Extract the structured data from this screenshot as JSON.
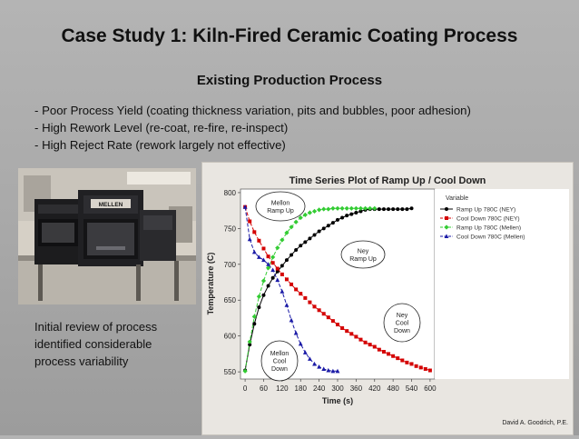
{
  "slide": {
    "title": "Case Study 1: Kiln-Fired Ceramic Coating Process",
    "subtitle": "Existing Production Process",
    "bullets": [
      "Poor Process Yield (coating thickness variation, pits and bubbles, poor adhesion)",
      "High Rework Level (re-coat, re-fire, re-inspect)",
      "High Reject Rate (rework largely not effective)"
    ],
    "review_text": "Initial review of process identified considerable process variability",
    "photo_label": "MELLEN",
    "footer": "David A. Goodrich, P.E."
  },
  "chart_data": {
    "type": "line",
    "title": "Time Series Plot of Ramp Up / Cool Down",
    "xlabel": "Time (s)",
    "ylabel": "Temperature (C)",
    "xlim": [
      -15,
      615
    ],
    "ylim": [
      540,
      805
    ],
    "xticks": [
      0,
      60,
      120,
      180,
      240,
      300,
      360,
      420,
      480,
      540,
      600
    ],
    "yticks": [
      550,
      600,
      650,
      700,
      750,
      800
    ],
    "legend_title": "Variable",
    "legend_position": "top-right",
    "series": [
      {
        "name": "Ramp Up 780C (NEY)",
        "color": "#000000",
        "marker": "circle",
        "dash": "solid",
        "x": [
          0,
          15,
          30,
          45,
          60,
          75,
          90,
          105,
          120,
          135,
          150,
          165,
          180,
          195,
          210,
          225,
          240,
          255,
          270,
          285,
          300,
          315,
          330,
          345,
          360,
          375,
          390,
          405,
          420,
          435,
          450,
          465,
          480,
          495,
          510,
          525,
          540
        ],
        "y": [
          552,
          588,
          617,
          640,
          657,
          670,
          681,
          690,
          698,
          706,
          713,
          720,
          726,
          731,
          736,
          741,
          746,
          750,
          754,
          758,
          762,
          765,
          768,
          770,
          772,
          774,
          776,
          777,
          777,
          777,
          777,
          777,
          777,
          777,
          777,
          777,
          778
        ]
      },
      {
        "name": "Cool Down 780C (NEY)",
        "color": "#d40000",
        "marker": "square",
        "dash": "dashed",
        "x": [
          0,
          15,
          30,
          45,
          60,
          75,
          90,
          105,
          120,
          135,
          150,
          165,
          180,
          195,
          210,
          225,
          240,
          255,
          270,
          285,
          300,
          315,
          330,
          345,
          360,
          375,
          390,
          405,
          420,
          435,
          450,
          465,
          480,
          495,
          510,
          525,
          540,
          555,
          570,
          585,
          600
        ],
        "y": [
          780,
          760,
          745,
          733,
          722,
          711,
          702,
          694,
          686,
          679,
          672,
          665,
          659,
          653,
          647,
          641,
          636,
          631,
          626,
          621,
          616,
          611,
          607,
          603,
          599,
          595,
          591,
          588,
          585,
          581,
          578,
          575,
          572,
          569,
          566,
          563,
          561,
          558,
          556,
          554,
          552
        ]
      },
      {
        "name": "Ramp Up 780C (Mellen)",
        "color": "#33cc33",
        "marker": "diamond",
        "dash": "dashed",
        "x": [
          0,
          15,
          30,
          45,
          60,
          75,
          90,
          105,
          120,
          135,
          150,
          165,
          180,
          195,
          210,
          225,
          240,
          255,
          270,
          285,
          300,
          315,
          330,
          345,
          360,
          375,
          390,
          405,
          420
        ],
        "y": [
          551,
          592,
          627,
          655,
          677,
          695,
          710,
          723,
          734,
          744,
          752,
          759,
          765,
          769,
          772,
          774,
          776,
          777,
          777,
          778,
          778,
          778,
          778,
          778,
          778,
          778,
          778,
          778,
          778
        ]
      },
      {
        "name": "Cool Down 780C (Mellen)",
        "color": "#1a1aa6",
        "marker": "triangle",
        "dash": "dashed",
        "x": [
          0,
          15,
          30,
          45,
          60,
          75,
          90,
          105,
          120,
          135,
          150,
          165,
          180,
          195,
          210,
          225,
          240,
          255,
          270,
          285,
          300
        ],
        "y": [
          780,
          735,
          717,
          710,
          706,
          700,
          692,
          678,
          662,
          643,
          622,
          604,
          589,
          577,
          568,
          561,
          557,
          554,
          552,
          551,
          551
        ]
      }
    ],
    "annotations": [
      {
        "id": "mellon-ramp-up",
        "text": [
          "Mellon",
          "Ramp Up"
        ]
      },
      {
        "id": "ney-ramp-up",
        "text": [
          "Ney",
          "Ramp Up"
        ]
      },
      {
        "id": "ney-cool-down",
        "text": [
          "Ney",
          "Cool",
          "Down"
        ]
      },
      {
        "id": "mellon-cool-down",
        "text": [
          "Mellon",
          "Cool",
          "Down"
        ]
      }
    ]
  }
}
